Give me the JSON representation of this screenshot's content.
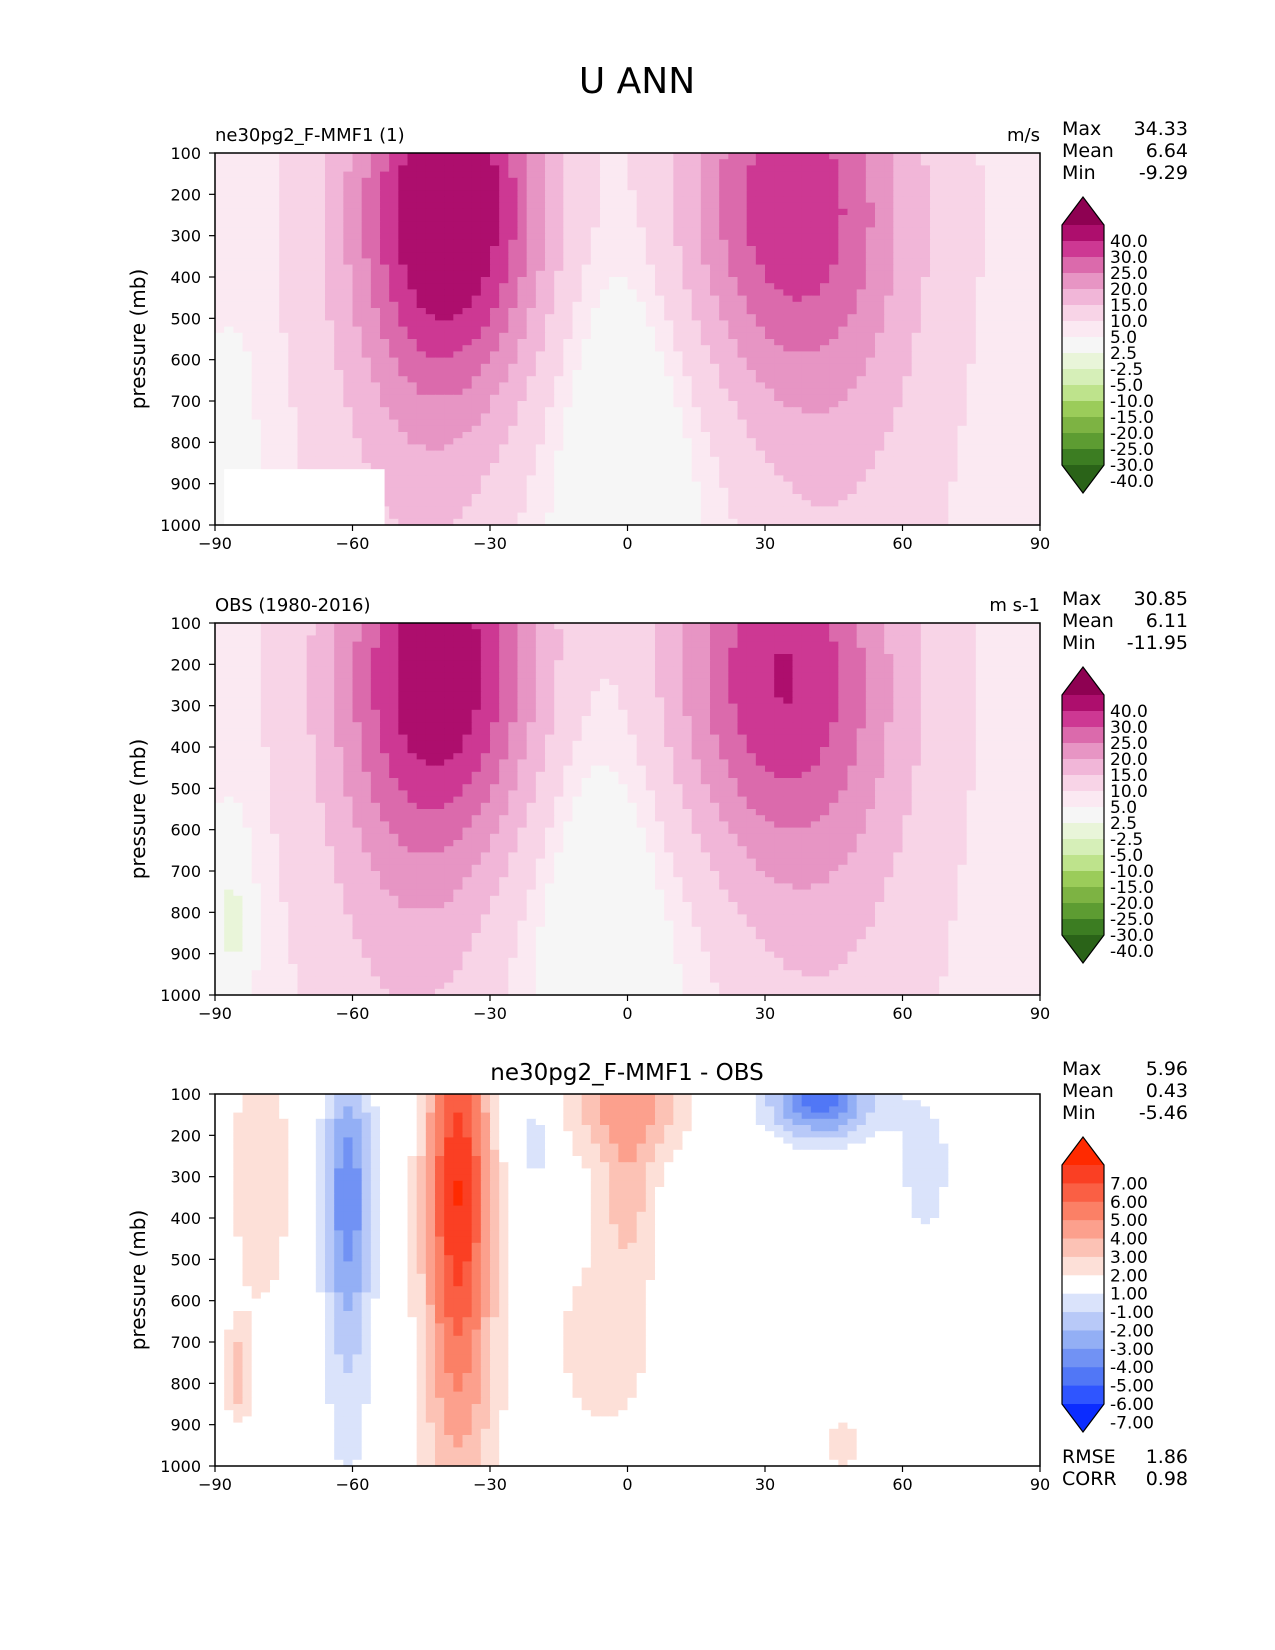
{
  "title": "U ANN",
  "colors": {
    "model_obs_levels": [
      "#2a6318",
      "#3c7d22",
      "#5d9c32",
      "#7db343",
      "#9bcc5a",
      "#bee38c",
      "#d6efb8",
      "#e9f5d9",
      "#f6f6f6",
      "#fbe9f2",
      "#f8d4e7",
      "#f1b6d8",
      "#e795c4",
      "#db6aac",
      "#cd3893",
      "#ad0e6d",
      "#8e0152"
    ],
    "diff_levels": [
      "#0b2cff",
      "#2f55ff",
      "#5177f6",
      "#7192f4",
      "#93aff5",
      "#b8c9f8",
      "#dae3fb",
      "#ffffff",
      "#fde0d8",
      "#fcc2b5",
      "#fca08d",
      "#fb8066",
      "#fa5f44",
      "#fa3f23",
      "#ff2a00"
    ]
  },
  "chart_data": [
    {
      "type": "contour",
      "name": "model",
      "title": "ne30pg2_F-MMF1 (1)",
      "units": "m/s",
      "ylabel": "pressure (mb)",
      "xlim": [
        -90,
        90
      ],
      "ylim": [
        1000,
        100
      ],
      "xticks": [
        "−90",
        "−60",
        "−30",
        "0",
        "30",
        "60",
        "90"
      ],
      "yticks": [
        "100",
        "200",
        "300",
        "400",
        "500",
        "600",
        "700",
        "800",
        "900",
        "1000"
      ],
      "stats": {
        "max_label": "Max",
        "max": "34.33",
        "mean_label": "Mean",
        "mean": "6.64",
        "min_label": "Min",
        "min": "-9.29"
      },
      "colorbar_ticks": [
        "40.0",
        "30.0",
        "25.0",
        "20.0",
        "15.0",
        "10.0",
        "5.0",
        "2.5",
        "-2.5",
        "-5.0",
        "-10.0",
        "-15.0",
        "-20.0",
        "-25.0",
        "-30.0",
        "-40.0"
      ],
      "features": [
        {
          "lat": -38,
          "p": 220,
          "amp": 31,
          "wlat": 15,
          "wp": 320
        },
        {
          "lat": 34,
          "p": 210,
          "amp": 23,
          "wlat": 18,
          "wp": 330
        },
        {
          "lat": -45,
          "p": 700,
          "amp": 6,
          "wlat": 14,
          "wp": 500
        },
        {
          "lat": 45,
          "p": 700,
          "amp": 5,
          "wlat": 15,
          "wp": 500
        },
        {
          "lat": 0,
          "p": 700,
          "amp": -4,
          "wlat": 12,
          "wp": 350
        },
        {
          "lat": -86,
          "p": 800,
          "amp": -5,
          "wlat": 3,
          "wp": 150
        }
      ],
      "masked_region": {
        "lat_min": -88,
        "lat_max": -53,
        "p_min": 865,
        "p_max": 1000
      }
    },
    {
      "type": "contour",
      "name": "obs",
      "title": "OBS (1980-2016)",
      "units": "m s-1",
      "ylabel": "pressure (mb)",
      "xlim": [
        -90,
        90
      ],
      "ylim": [
        1000,
        100
      ],
      "xticks": [
        "−90",
        "−60",
        "−30",
        "0",
        "30",
        "60",
        "90"
      ],
      "yticks": [
        "100",
        "200",
        "300",
        "400",
        "500",
        "600",
        "700",
        "800",
        "900",
        "1000"
      ],
      "stats": {
        "max_label": "Max",
        "max": "30.85",
        "mean_label": "Mean",
        "mean": "6.11",
        "min_label": "Min",
        "min": "-11.95"
      },
      "colorbar_ticks": [
        "40.0",
        "30.0",
        "25.0",
        "20.0",
        "15.0",
        "10.0",
        "5.0",
        "2.5",
        "-2.5",
        "-5.0",
        "-10.0",
        "-15.0",
        "-20.0",
        "-25.0",
        "-30.0",
        "-40.0"
      ],
      "features": [
        {
          "lat": -40,
          "p": 200,
          "amp": 28,
          "wlat": 16,
          "wp": 330
        },
        {
          "lat": 32,
          "p": 210,
          "amp": 24,
          "wlat": 18,
          "wp": 330
        },
        {
          "lat": -48,
          "p": 700,
          "amp": 6,
          "wlat": 14,
          "wp": 500
        },
        {
          "lat": 42,
          "p": 700,
          "amp": 5,
          "wlat": 16,
          "wp": 500
        },
        {
          "lat": -8,
          "p": 700,
          "amp": -4,
          "wlat": 12,
          "wp": 350
        },
        {
          "lat": -86,
          "p": 820,
          "amp": -7,
          "wlat": 3,
          "wp": 150
        }
      ]
    },
    {
      "type": "contour",
      "name": "difference",
      "title": "ne30pg2_F-MMF1 - OBS",
      "ylabel": "pressure (mb)",
      "xlim": [
        -90,
        90
      ],
      "ylim": [
        1000,
        100
      ],
      "xticks": [
        "−90",
        "−60",
        "−30",
        "0",
        "30",
        "60",
        "90"
      ],
      "yticks": [
        "100",
        "200",
        "300",
        "400",
        "500",
        "600",
        "700",
        "800",
        "900",
        "1000"
      ],
      "stats": {
        "max_label": "Max",
        "max": "5.96",
        "mean_label": "Mean",
        "mean": "0.43",
        "min_label": "Min",
        "min": "-5.46"
      },
      "colorbar_ticks": [
        "7.00",
        "6.00",
        "5.00",
        "4.00",
        "3.00",
        "2.00",
        "1.00",
        "-1.00",
        "-2.00",
        "-3.00",
        "-4.00",
        "-5.00",
        "-6.00",
        "-7.00"
      ],
      "rmse_label": "RMSE",
      "rmse": "1.86",
      "corr_label": "CORR",
      "corr": "0.98",
      "features": [
        {
          "lat": -37,
          "p": 270,
          "amp": 6,
          "wlat": 5,
          "wp": 300
        },
        {
          "lat": -37,
          "p": 800,
          "amp": 2.8,
          "wlat": 6,
          "wp": 350
        },
        {
          "lat": -61,
          "p": 320,
          "amp": -4.2,
          "wlat": 4,
          "wp": 220
        },
        {
          "lat": -61,
          "p": 750,
          "amp": -1.5,
          "wlat": 4,
          "wp": 300
        },
        {
          "lat": 42,
          "p": 110,
          "amp": -5.5,
          "wlat": 8,
          "wp": 70
        },
        {
          "lat": 0,
          "p": 120,
          "amp": 3.5,
          "wlat": 9,
          "wp": 100
        },
        {
          "lat": 0,
          "p": 350,
          "amp": 2.0,
          "wlat": 4,
          "wp": 120
        },
        {
          "lat": -80,
          "p": 300,
          "amp": 1.6,
          "wlat": 6,
          "wp": 300
        },
        {
          "lat": -85,
          "p": 780,
          "amp": 2.5,
          "wlat": 2,
          "wp": 80
        },
        {
          "lat": -20,
          "p": 220,
          "amp": -1.8,
          "wlat": 3,
          "wp": 80
        },
        {
          "lat": 65,
          "p": 280,
          "amp": -1.3,
          "wlat": 6,
          "wp": 180
        },
        {
          "lat": 47,
          "p": 950,
          "amp": 1.3,
          "wlat": 4,
          "wp": 80
        },
        {
          "lat": -5,
          "p": 700,
          "amp": 1.3,
          "wlat": 12,
          "wp": 250
        }
      ]
    }
  ]
}
